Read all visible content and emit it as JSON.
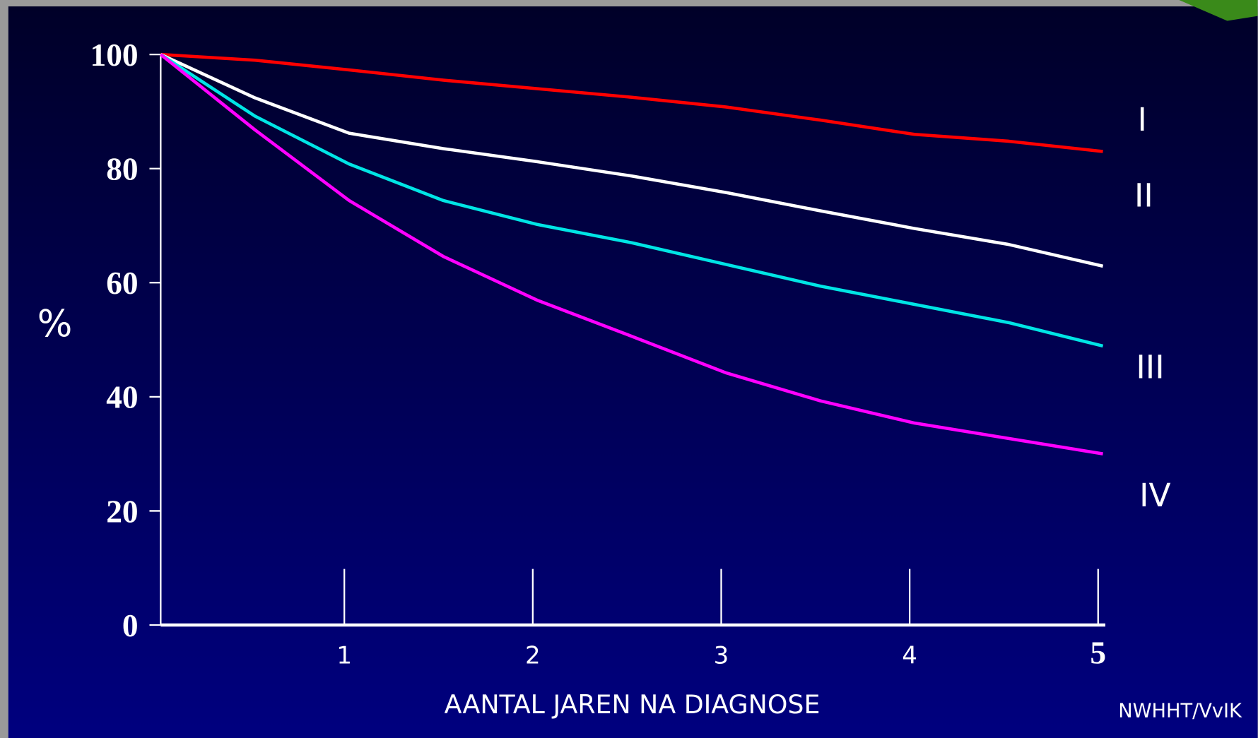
{
  "chart_data": {
    "type": "line",
    "y_label": "%",
    "x_label": "AANTAL JAREN NA DIAGNOSE",
    "credit": "NWHHT/VvIK",
    "x": [
      0,
      0.5,
      1,
      1.5,
      2,
      2.5,
      3,
      3.5,
      4,
      4.5,
      5
    ],
    "xlim": [
      0,
      5
    ],
    "xticks": [
      1,
      2,
      3,
      4,
      5
    ],
    "ylim": [
      0,
      100
    ],
    "yticks": [
      0,
      20,
      40,
      60,
      80,
      100
    ],
    "series": [
      {
        "name": "I",
        "color": "#ff0000",
        "values": [
          100,
          99,
          97.3,
          95.5,
          94,
          92.5,
          90.8,
          88.5,
          86,
          84.8,
          83
        ]
      },
      {
        "name": "II",
        "color": "#ffffff",
        "values": [
          100,
          92.4,
          86.2,
          83.5,
          81.2,
          78.7,
          75.8,
          72.6,
          69.5,
          66.7,
          62.9
        ]
      },
      {
        "name": "III",
        "color": "#00e5e5",
        "values": [
          100,
          89.2,
          80.8,
          74.4,
          70.2,
          67,
          63.2,
          59.4,
          56.2,
          53,
          48.9
        ]
      },
      {
        "name": "IV",
        "color": "#ff00ff",
        "values": [
          100,
          86.8,
          74.4,
          64.6,
          56.9,
          50.6,
          44.2,
          39.3,
          35.4,
          32.7,
          30
        ]
      }
    ]
  }
}
